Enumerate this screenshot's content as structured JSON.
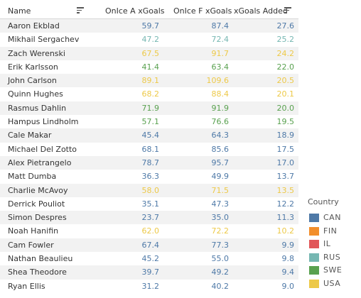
{
  "headers": {
    "player": "Name",
    "onice_a": "OnIce A xGoals",
    "onice_f": "OnIce F xGoals",
    "xgoals_added": "xGoals Added"
  },
  "countries": {
    "CAN": "#4e79a7",
    "FIN": "#f28e2b",
    "IL": "#e15759",
    "RUS": "#76b7b2",
    "SWE": "#59a14f",
    "USA": "#edc948"
  },
  "rows": [
    {
      "name": "Aaron Ekblad",
      "a": "59.7",
      "f": "87.4",
      "x": "27.6",
      "country": "CAN"
    },
    {
      "name": "Mikhail Sergachev",
      "a": "47.2",
      "f": "72.4",
      "x": "25.2",
      "country": "RUS"
    },
    {
      "name": "Zach Werenski",
      "a": "67.5",
      "f": "91.7",
      "x": "24.2",
      "country": "USA"
    },
    {
      "name": "Erik Karlsson",
      "a": "41.4",
      "f": "63.4",
      "x": "22.0",
      "country": "SWE"
    },
    {
      "name": "John Carlson",
      "a": "89.1",
      "f": "109.6",
      "x": "20.5",
      "country": "USA"
    },
    {
      "name": "Quinn Hughes",
      "a": "68.2",
      "f": "88.4",
      "x": "20.1",
      "country": "USA"
    },
    {
      "name": "Rasmus Dahlin",
      "a": "71.9",
      "f": "91.9",
      "x": "20.0",
      "country": "SWE"
    },
    {
      "name": "Hampus Lindholm",
      "a": "57.1",
      "f": "76.6",
      "x": "19.5",
      "country": "SWE"
    },
    {
      "name": "Cale Makar",
      "a": "45.4",
      "f": "64.3",
      "x": "18.9",
      "country": "CAN"
    },
    {
      "name": "Michael Del Zotto",
      "a": "68.1",
      "f": "85.6",
      "x": "17.5",
      "country": "CAN"
    },
    {
      "name": "Alex Pietrangelo",
      "a": "78.7",
      "f": "95.7",
      "x": "17.0",
      "country": "CAN"
    },
    {
      "name": "Matt Dumba",
      "a": "36.3",
      "f": "49.9",
      "x": "13.7",
      "country": "CAN"
    },
    {
      "name": "Charlie McAvoy",
      "a": "58.0",
      "f": "71.5",
      "x": "13.5",
      "country": "USA"
    },
    {
      "name": "Derrick Pouliot",
      "a": "35.1",
      "f": "47.3",
      "x": "12.2",
      "country": "CAN"
    },
    {
      "name": "Simon Despres",
      "a": "23.7",
      "f": "35.0",
      "x": "11.3",
      "country": "CAN"
    },
    {
      "name": "Noah Hanifin",
      "a": "62.0",
      "f": "72.2",
      "x": "10.2",
      "country": "USA"
    },
    {
      "name": "Cam Fowler",
      "a": "67.4",
      "f": "77.3",
      "x": "9.9",
      "country": "CAN"
    },
    {
      "name": "Nathan Beaulieu",
      "a": "45.2",
      "f": "55.0",
      "x": "9.8",
      "country": "CAN"
    },
    {
      "name": "Shea Theodore",
      "a": "39.7",
      "f": "49.2",
      "x": "9.4",
      "country": "CAN"
    },
    {
      "name": "Ryan Ellis",
      "a": "31.2",
      "f": "40.2",
      "x": "9.0",
      "country": "CAN"
    }
  ],
  "legend": {
    "title": "Country",
    "items": [
      "CAN",
      "FIN",
      "IL",
      "RUS",
      "SWE",
      "USA"
    ]
  },
  "icons": {
    "player_sort": "sort-icon",
    "xgoals_added_sort": "sort-icon"
  }
}
